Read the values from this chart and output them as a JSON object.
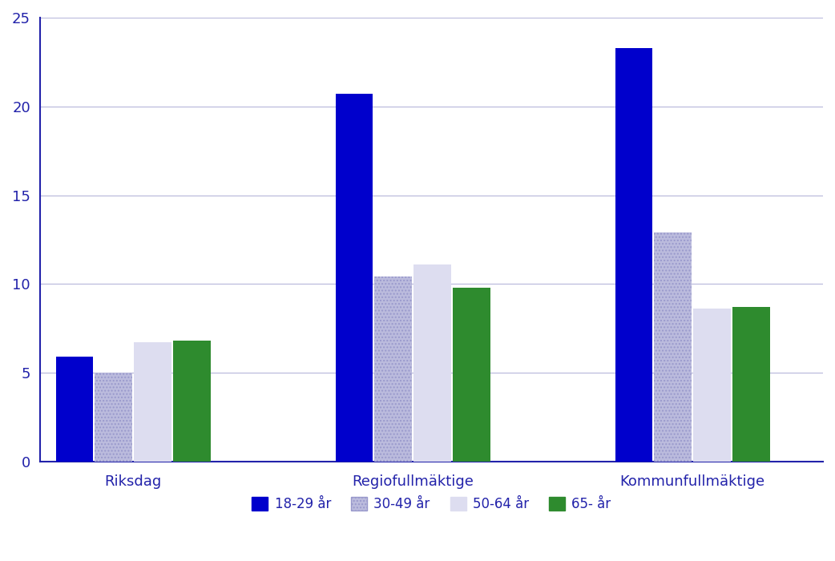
{
  "categories": [
    "Riksdag",
    "Regiofullmäktige",
    "Kommunfullmäktige"
  ],
  "series": {
    "18-29 år": [
      5.9,
      20.7,
      23.3
    ],
    "30-49 år": [
      5.0,
      10.4,
      12.9
    ],
    "50-64 år": [
      6.7,
      11.1,
      8.6
    ],
    "65- år": [
      6.8,
      9.8,
      8.7
    ]
  },
  "colors": {
    "18-29 år": "#0000CC",
    "30-49 år": "#BBBBDD",
    "50-64 år": "#DDDDF0",
    "65- år": "#2E8B2E"
  },
  "hatches": {
    "18-29 år": "",
    "30-49 år": "....",
    "50-64 år": "",
    "65- år": ""
  },
  "ylim": [
    0,
    25
  ],
  "yticks": [
    0,
    5,
    10,
    15,
    20,
    25
  ],
  "background_color": "#ffffff",
  "tick_color": "#2222AA",
  "label_color": "#2222AA",
  "grid_color": "#BBBBDD",
  "bar_width": 0.2,
  "group_centers": [
    0.5,
    2.0,
    3.5
  ]
}
